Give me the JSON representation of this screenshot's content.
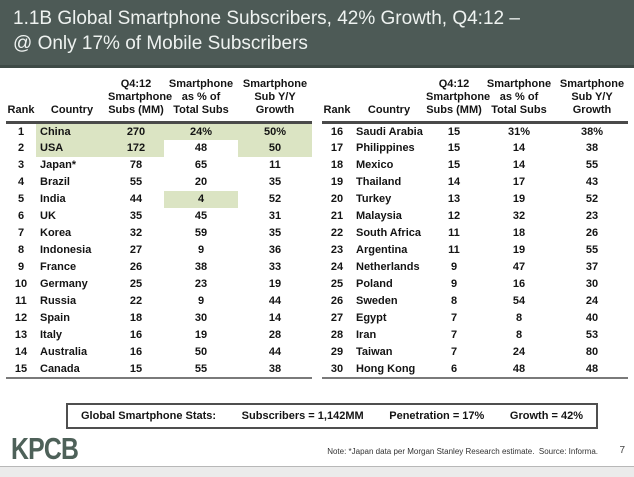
{
  "slide": {
    "title_line1": "1.1B Global Smartphone Subscribers, 42% Growth, Q4:12 –",
    "title_line2": "@ Only 17% of Mobile Subscribers"
  },
  "columns": {
    "rank": "Rank",
    "country": "Country",
    "subs": "Q4:12\nSmartphone\nSubs (MM)",
    "pct": "Smartphone\nas % of\nTotal Subs",
    "growth": "Smartphone\nSub Y/Y\nGrowth"
  },
  "tables": [
    {
      "rows": [
        {
          "rank": "1",
          "country": "China",
          "subs": "270",
          "pct": "24%",
          "growth": "50%",
          "hl": [
            "country",
            "subs",
            "pct",
            "growth"
          ]
        },
        {
          "rank": "2",
          "country": "USA",
          "subs": "172",
          "pct": "48",
          "growth": "50",
          "hl": [
            "country",
            "subs",
            "growth"
          ]
        },
        {
          "rank": "3",
          "country": "Japan*",
          "subs": "78",
          "pct": "65",
          "growth": "11"
        },
        {
          "rank": "4",
          "country": "Brazil",
          "subs": "55",
          "pct": "20",
          "growth": "35"
        },
        {
          "rank": "5",
          "country": "India",
          "subs": "44",
          "pct": "4",
          "growth": "52",
          "hl": [
            "pct"
          ]
        },
        {
          "rank": "6",
          "country": "UK",
          "subs": "35",
          "pct": "45",
          "growth": "31"
        },
        {
          "rank": "7",
          "country": "Korea",
          "subs": "32",
          "pct": "59",
          "growth": "35"
        },
        {
          "rank": "8",
          "country": "Indonesia",
          "subs": "27",
          "pct": "9",
          "growth": "36"
        },
        {
          "rank": "9",
          "country": "France",
          "subs": "26",
          "pct": "38",
          "growth": "33"
        },
        {
          "rank": "10",
          "country": "Germany",
          "subs": "25",
          "pct": "23",
          "growth": "19"
        },
        {
          "rank": "11",
          "country": "Russia",
          "subs": "22",
          "pct": "9",
          "growth": "44"
        },
        {
          "rank": "12",
          "country": "Spain",
          "subs": "18",
          "pct": "30",
          "growth": "14"
        },
        {
          "rank": "13",
          "country": "Italy",
          "subs": "16",
          "pct": "19",
          "growth": "28"
        },
        {
          "rank": "14",
          "country": "Australia",
          "subs": "16",
          "pct": "50",
          "growth": "44"
        },
        {
          "rank": "15",
          "country": "Canada",
          "subs": "15",
          "pct": "55",
          "growth": "38"
        }
      ]
    },
    {
      "rows": [
        {
          "rank": "16",
          "country": "Saudi Arabia",
          "subs": "15",
          "pct": "31%",
          "growth": "38%"
        },
        {
          "rank": "17",
          "country": "Philippines",
          "subs": "15",
          "pct": "14",
          "growth": "38"
        },
        {
          "rank": "18",
          "country": "Mexico",
          "subs": "15",
          "pct": "14",
          "growth": "55"
        },
        {
          "rank": "19",
          "country": "Thailand",
          "subs": "14",
          "pct": "17",
          "growth": "43"
        },
        {
          "rank": "20",
          "country": "Turkey",
          "subs": "13",
          "pct": "19",
          "growth": "52"
        },
        {
          "rank": "21",
          "country": "Malaysia",
          "subs": "12",
          "pct": "32",
          "growth": "23"
        },
        {
          "rank": "22",
          "country": "South Africa",
          "subs": "11",
          "pct": "18",
          "growth": "26"
        },
        {
          "rank": "23",
          "country": "Argentina",
          "subs": "11",
          "pct": "19",
          "growth": "55"
        },
        {
          "rank": "24",
          "country": "Netherlands",
          "subs": "9",
          "pct": "47",
          "growth": "37"
        },
        {
          "rank": "25",
          "country": "Poland",
          "subs": "9",
          "pct": "16",
          "growth": "30"
        },
        {
          "rank": "26",
          "country": "Sweden",
          "subs": "8",
          "pct": "54",
          "growth": "24"
        },
        {
          "rank": "27",
          "country": "Egypt",
          "subs": "7",
          "pct": "8",
          "growth": "40"
        },
        {
          "rank": "28",
          "country": "Iran",
          "subs": "7",
          "pct": "8",
          "growth": "53"
        },
        {
          "rank": "29",
          "country": "Taiwan",
          "subs": "7",
          "pct": "24",
          "growth": "80"
        },
        {
          "rank": "30",
          "country": "Hong Kong",
          "subs": "6",
          "pct": "48",
          "growth": "48"
        }
      ]
    }
  ],
  "stats_bar": {
    "label": "Global Smartphone Stats:",
    "subscribers": "Subscribers = 1,142MM",
    "penetration": "Penetration = 17%",
    "growth": "Growth = 42%"
  },
  "footer": {
    "logo": "KPCB",
    "note": "Note: *Japan data per Morgan Stanley Research estimate.  Source: Informa.",
    "page_number": "7"
  },
  "colors": {
    "title_bg": "#4d5a56",
    "highlight": "#dbe4c3",
    "logo": "#4e6159"
  }
}
